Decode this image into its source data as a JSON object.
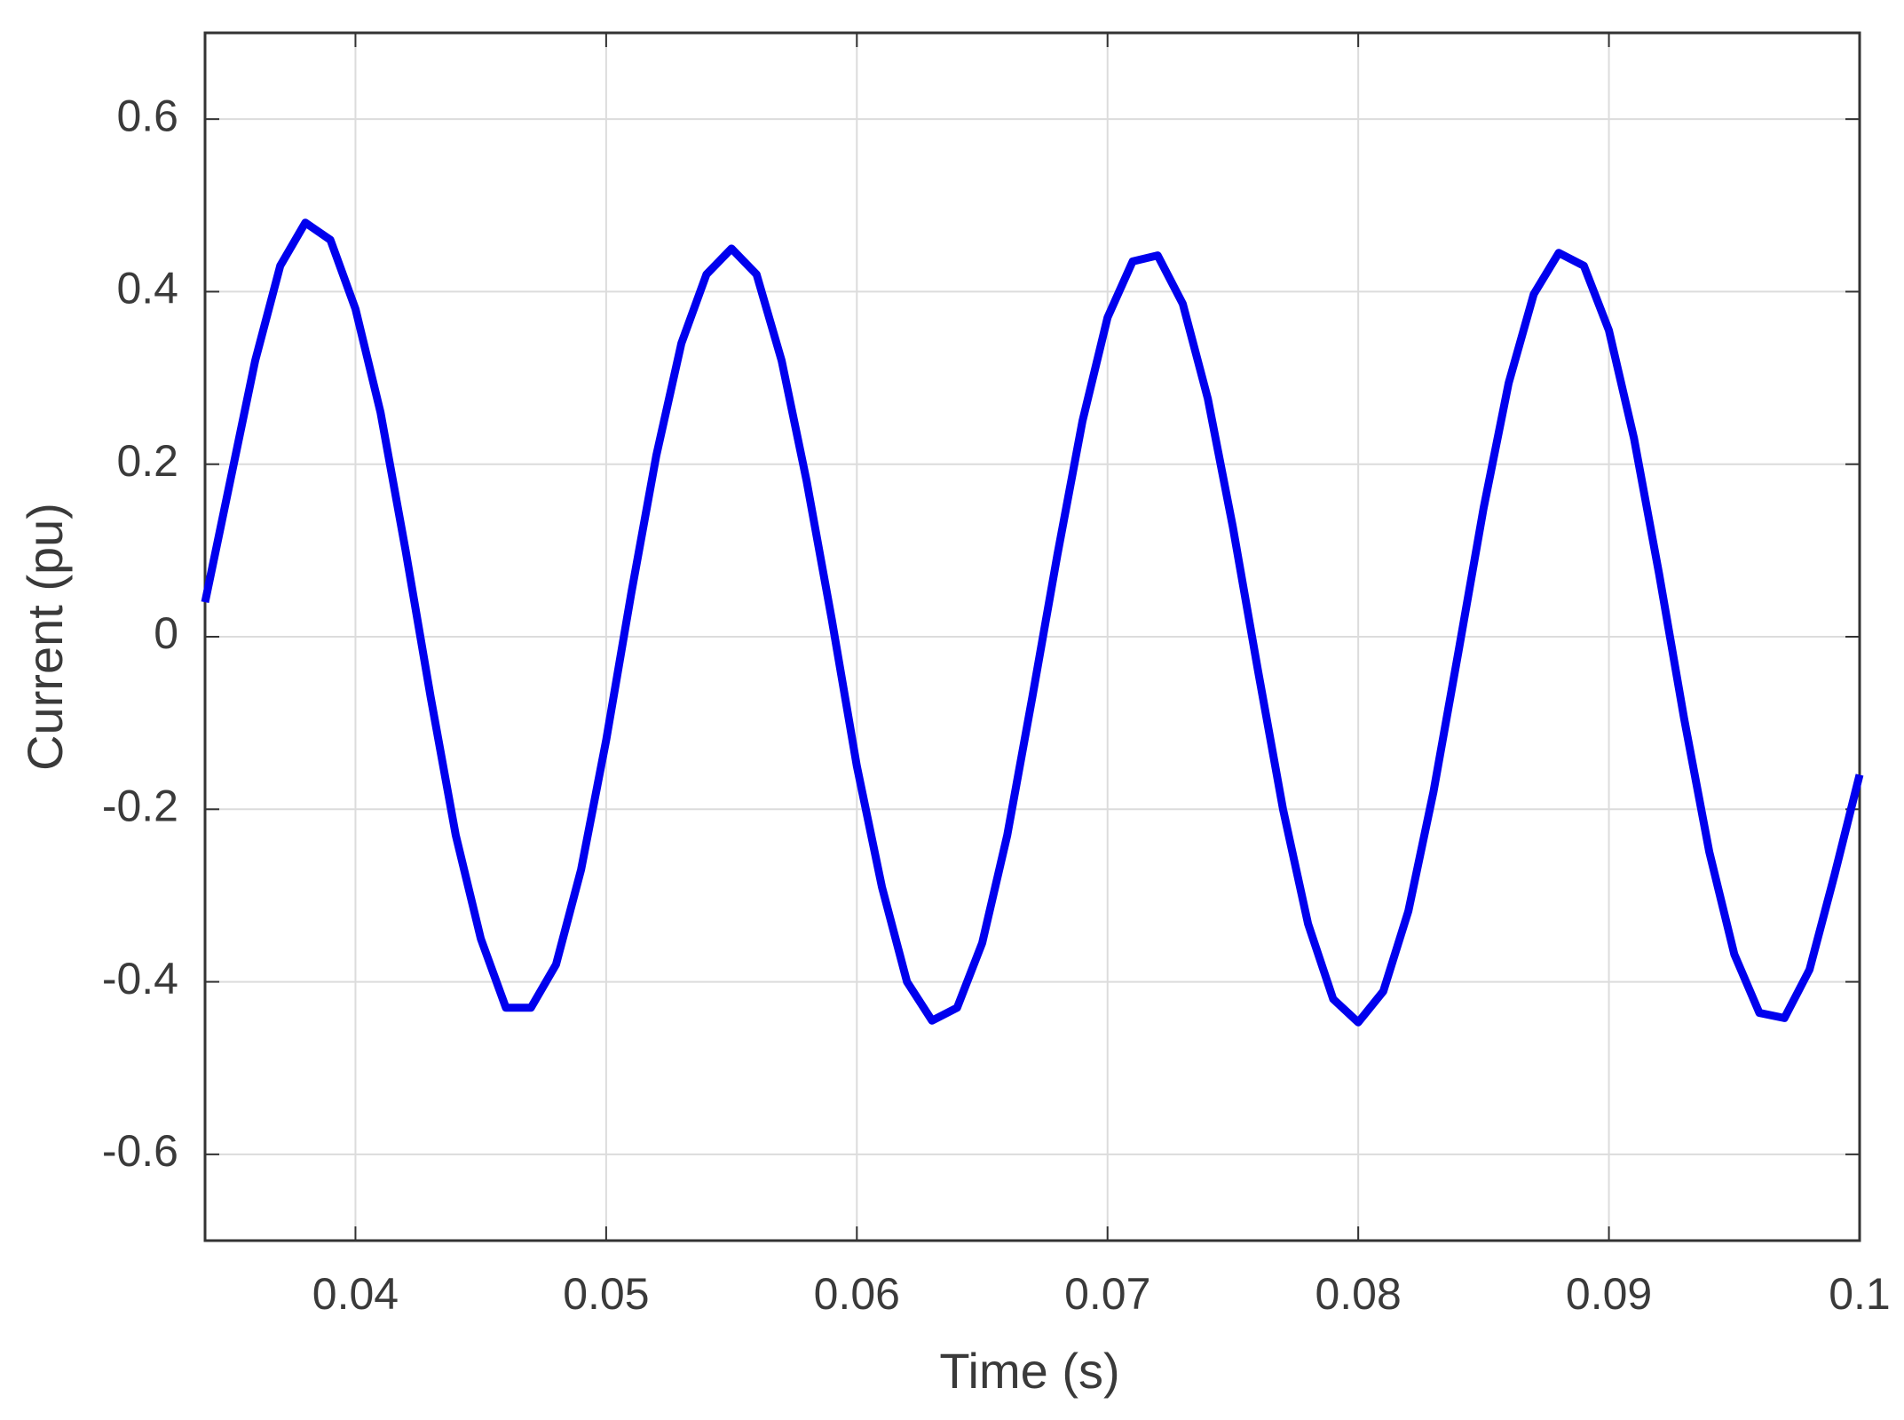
{
  "chart_data": {
    "type": "line",
    "xlabel": "Time (s)",
    "ylabel": "Current (pu)",
    "xlim": [
      0.034,
      0.1
    ],
    "ylim": [
      -0.7,
      0.7
    ],
    "xticks": [
      0.04,
      0.05,
      0.06,
      0.07,
      0.08,
      0.09,
      0.1
    ],
    "yticks": [
      -0.6,
      -0.4,
      -0.2,
      0,
      0.2,
      0.4,
      0.6
    ],
    "grid": true,
    "x": [
      0.034,
      0.035,
      0.036,
      0.037,
      0.038,
      0.039,
      0.04,
      0.041,
      0.042,
      0.043,
      0.044,
      0.045,
      0.046,
      0.047,
      0.048,
      0.049,
      0.05,
      0.051,
      0.052,
      0.053,
      0.054,
      0.055,
      0.056,
      0.057,
      0.058,
      0.059,
      0.06,
      0.061,
      0.062,
      0.063,
      0.064,
      0.065,
      0.066,
      0.067,
      0.068,
      0.069,
      0.07,
      0.071,
      0.072,
      0.073,
      0.074,
      0.075,
      0.076,
      0.077,
      0.078,
      0.079,
      0.08,
      0.081,
      0.082,
      0.083,
      0.084,
      0.085,
      0.086,
      0.087,
      0.088,
      0.089,
      0.09,
      0.091,
      0.092,
      0.093,
      0.094,
      0.095,
      0.096,
      0.097,
      0.098,
      0.099,
      0.1
    ],
    "series": [
      {
        "name": "Current",
        "color": "#0000ee",
        "values": [
          0.04,
          0.18,
          0.32,
          0.43,
          0.48,
          0.46,
          0.38,
          0.26,
          0.1,
          -0.07,
          -0.23,
          -0.35,
          -0.43,
          -0.43,
          -0.38,
          -0.27,
          -0.12,
          0.05,
          0.21,
          0.34,
          0.42,
          0.45,
          0.42,
          0.32,
          0.18,
          0.02,
          -0.15,
          -0.29,
          -0.4,
          -0.445,
          -0.43,
          -0.355,
          -0.23,
          -0.07,
          0.095,
          0.25,
          0.37,
          0.435,
          0.442,
          0.386,
          0.276,
          0.127,
          -0.039,
          -0.2,
          -0.333,
          -0.42,
          -0.447,
          -0.411,
          -0.318,
          -0.18,
          -0.017,
          0.149,
          0.294,
          0.397,
          0.445,
          0.43,
          0.355,
          0.23,
          0.073,
          -0.095,
          -0.249,
          -0.368,
          -0.436,
          -0.442,
          -0.386,
          -0.276,
          -0.16
        ]
      }
    ]
  }
}
